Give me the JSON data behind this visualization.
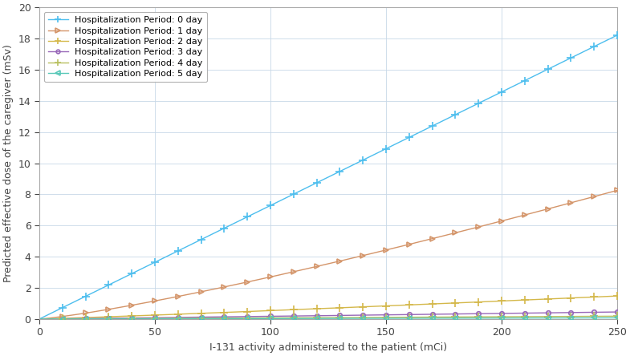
{
  "xlabel": "I-131 activity administered to the patient (mCi)",
  "ylabel": "Predicted effective dose of the caregiver (mSv)",
  "xlim": [
    0,
    250
  ],
  "ylim": [
    0,
    20
  ],
  "xticks": [
    0,
    50,
    100,
    150,
    200,
    250
  ],
  "yticks": [
    0,
    2,
    4,
    6,
    8,
    10,
    12,
    14,
    16,
    18,
    20
  ],
  "series": [
    {
      "label": "Hospitalization Period: 0 day",
      "color": "#4dbeee",
      "marker": "+",
      "a": 0.07284,
      "b": 1.0,
      "markersize": 7,
      "markevery": 10
    },
    {
      "label": "Hospitalization Period: 1 day",
      "color": "#d4956a",
      "marker": ">",
      "a": 0.0098,
      "b": 1.22,
      "markersize": 5,
      "markevery": 10
    },
    {
      "label": "Hospitalization Period: 2 day",
      "color": "#d4b84a",
      "marker": "+",
      "a": 0.0034,
      "b": 1.1,
      "markersize": 7,
      "markevery": 10
    },
    {
      "label": "Hospitalization Period: 3 day",
      "color": "#9868b8",
      "marker": "o",
      "a": 0.00145,
      "b": 1.04,
      "markersize": 4,
      "markevery": 10
    },
    {
      "label": "Hospitalization Period: 4 day",
      "color": "#b8c060",
      "marker": "+",
      "a": 0.00065,
      "b": 1.02,
      "markersize": 7,
      "markevery": 10
    },
    {
      "label": "Hospitalization Period: 5 day",
      "color": "#58c8b8",
      "marker": "<",
      "a": 0.00028,
      "b": 1.01,
      "markersize": 5,
      "markevery": 10
    }
  ],
  "background_color": "#ffffff",
  "grid_color": "#c8d8e8",
  "legend_loc": "upper left",
  "figsize": [
    7.85,
    4.44
  ],
  "dpi": 100
}
